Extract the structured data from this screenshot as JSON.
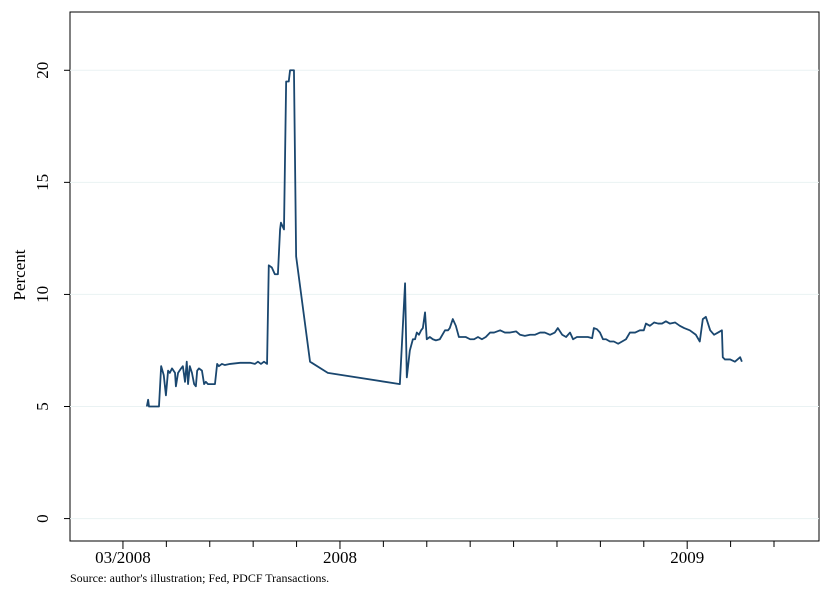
{
  "chart_data": {
    "type": "line",
    "y_label": "Percent",
    "source": "Source: author's illustration; Fed, PDCF Transactions.",
    "ylim": [
      -1,
      22.6
    ],
    "yticks": [
      0,
      5,
      10,
      15,
      20
    ],
    "grid": true,
    "xlim": [
      -1.22,
      16.06
    ],
    "xticks": [
      {
        "value": 0,
        "label": "03/2008"
      },
      {
        "value": 5,
        "label": "2008"
      },
      {
        "value": 13,
        "label": "2009"
      }
    ],
    "xminor_ticks": [
      1,
      2,
      3,
      4,
      6,
      7,
      8,
      9,
      10,
      11,
      12,
      14,
      15
    ],
    "series": [
      {
        "color": "#1a476f",
        "x": [
          0.55,
          0.58,
          0.6,
          0.81,
          0.83,
          0.88,
          0.94,
          0.99,
          1.04,
          1.08,
          1.13,
          1.2,
          1.22,
          1.27,
          1.34,
          1.38,
          1.43,
          1.47,
          1.5,
          1.54,
          1.59,
          1.64,
          1.68,
          1.71,
          1.75,
          1.82,
          1.87,
          1.91,
          1.96,
          2.05,
          2.12,
          2.17,
          2.21,
          2.28,
          2.35,
          2.47,
          2.7,
          2.93,
          3.04,
          3.11,
          3.18,
          3.25,
          3.32,
          3.36,
          3.43,
          3.5,
          3.57,
          3.62,
          3.64,
          3.71,
          3.76,
          3.82,
          3.85,
          3.94,
          3.99,
          4.31,
          4.72,
          6.38,
          6.5,
          6.54,
          6.61,
          6.68,
          6.73,
          6.77,
          6.82,
          6.87,
          6.91,
          6.96,
          7.0,
          7.07,
          7.14,
          7.21,
          7.3,
          7.42,
          7.49,
          7.53,
          7.6,
          7.67,
          7.74,
          7.81,
          7.9,
          8.0,
          8.09,
          8.18,
          8.27,
          8.36,
          8.46,
          8.55,
          8.69,
          8.8,
          8.92,
          9.06,
          9.15,
          9.26,
          9.38,
          9.49,
          9.61,
          9.72,
          9.84,
          9.95,
          10.02,
          10.12,
          10.21,
          10.3,
          10.37,
          10.46,
          10.58,
          10.71,
          10.81,
          10.85,
          10.92,
          10.99,
          11.06,
          11.13,
          11.22,
          11.31,
          11.41,
          11.5,
          11.59,
          11.68,
          11.8,
          11.91,
          12.0,
          12.05,
          12.14,
          12.24,
          12.33,
          12.42,
          12.51,
          12.6,
          12.72,
          12.83,
          12.93,
          13.06,
          13.2,
          13.29,
          13.36,
          13.43,
          13.53,
          13.62,
          13.71,
          13.8,
          13.82,
          13.87,
          13.99,
          14.1,
          14.22,
          14.26
        ],
        "values": [
          5.0,
          5.3,
          5.0,
          5.0,
          5.0,
          6.8,
          6.4,
          5.5,
          6.6,
          6.5,
          6.7,
          6.5,
          5.9,
          6.5,
          6.7,
          6.8,
          6.1,
          7.0,
          6.0,
          6.8,
          6.5,
          6.0,
          5.9,
          6.6,
          6.7,
          6.6,
          6.0,
          6.1,
          6.0,
          6.0,
          6.0,
          6.9,
          6.8,
          6.9,
          6.85,
          6.9,
          6.95,
          6.95,
          6.9,
          7.0,
          6.9,
          7.0,
          6.9,
          11.3,
          11.2,
          10.9,
          10.9,
          12.9,
          13.2,
          12.9,
          19.5,
          19.5,
          20.0,
          20.0,
          11.7,
          7.0,
          6.5,
          6.0,
          10.5,
          6.3,
          7.5,
          8.0,
          8.0,
          8.3,
          8.2,
          8.4,
          8.5,
          9.2,
          8.0,
          8.1,
          8.0,
          7.95,
          8.0,
          8.4,
          8.4,
          8.5,
          8.9,
          8.6,
          8.1,
          8.1,
          8.1,
          8.0,
          8.0,
          8.1,
          8.0,
          8.1,
          8.3,
          8.3,
          8.4,
          8.3,
          8.3,
          8.35,
          8.2,
          8.15,
          8.2,
          8.2,
          8.3,
          8.3,
          8.2,
          8.3,
          8.5,
          8.2,
          8.1,
          8.3,
          8.0,
          8.1,
          8.1,
          8.1,
          8.05,
          8.5,
          8.45,
          8.3,
          8.0,
          8.0,
          7.9,
          7.9,
          7.8,
          7.9,
          8.0,
          8.3,
          8.3,
          8.4,
          8.4,
          8.7,
          8.6,
          8.75,
          8.7,
          8.7,
          8.8,
          8.7,
          8.75,
          8.6,
          8.5,
          8.4,
          8.2,
          7.9,
          8.9,
          9.0,
          8.4,
          8.2,
          8.3,
          8.4,
          7.2,
          7.1,
          7.1,
          7.0,
          7.2,
          7.0
        ]
      }
    ]
  }
}
